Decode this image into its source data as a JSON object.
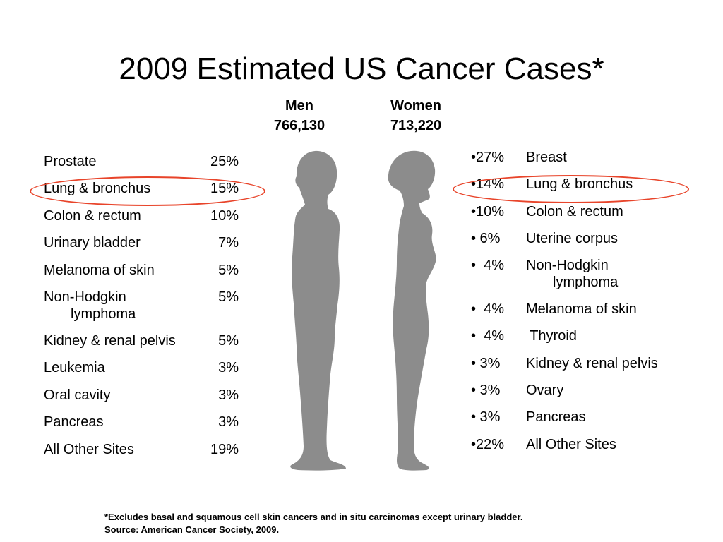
{
  "title": "2009 Estimated US Cancer Cases*",
  "men": {
    "label": "Men",
    "total": "766,130",
    "sites": [
      {
        "site": "Prostate",
        "site_cont": "",
        "pct": "25%"
      },
      {
        "site": "Lung & bronchus",
        "site_cont": "",
        "pct": "15%"
      },
      {
        "site": "Colon & rectum",
        "site_cont": "",
        "pct": "10%"
      },
      {
        "site": "Urinary bladder",
        "site_cont": "",
        "pct": "7%"
      },
      {
        "site": "Melanoma of skin",
        "site_cont": "",
        "pct": "5%"
      },
      {
        "site": "Non-Hodgkin",
        "site_cont": "lymphoma",
        "pct": "5%"
      },
      {
        "site": "Kidney & renal pelvis",
        "site_cont": "",
        "pct": "5%"
      },
      {
        "site": "Leukemia",
        "site_cont": "",
        "pct": "3%"
      },
      {
        "site": "Oral cavity",
        "site_cont": "",
        "pct": "3%"
      },
      {
        "site": "Pancreas",
        "site_cont": "",
        "pct": "3%"
      },
      {
        "site": "All Other Sites",
        "site_cont": "",
        "pct": "19%"
      }
    ]
  },
  "women": {
    "label": "Women",
    "total": "713,220",
    "sites": [
      {
        "pct": "•27%",
        "site": "Breast",
        "site_cont": ""
      },
      {
        "pct": "•14%",
        "site": "Lung & bronchus",
        "site_cont": ""
      },
      {
        "pct": "•10%",
        "site": "Colon & rectum",
        "site_cont": ""
      },
      {
        "pct": "• 6%",
        "site": "Uterine corpus",
        "site_cont": ""
      },
      {
        "pct": "•  4%",
        "site": "Non-Hodgkin",
        "site_cont": "lymphoma"
      },
      {
        "pct": "•  4%",
        "site": "Melanoma of skin",
        "site_cont": ""
      },
      {
        "pct": "•  4%",
        "site": " Thyroid",
        "site_cont": ""
      },
      {
        "pct": "• 3%",
        "site": "Kidney & renal pelvis",
        "site_cont": ""
      },
      {
        "pct": "• 3%",
        "site": "Ovary",
        "site_cont": ""
      },
      {
        "pct": "• 3%",
        "site": "Pancreas",
        "site_cont": ""
      },
      {
        "pct": "•22%",
        "site": "All Other Sites",
        "site_cont": ""
      }
    ]
  },
  "footnote": {
    "line1": "*Excludes basal and squamous cell skin cancers and in situ carcinomas except urinary bladder.",
    "line2": "Source: American Cancer Society, 2009."
  },
  "colors": {
    "silhouette": "#8c8c8c",
    "highlight": "#e8442a"
  },
  "icons": {
    "men_figure": "male-silhouette-icon",
    "women_figure": "female-silhouette-icon"
  }
}
